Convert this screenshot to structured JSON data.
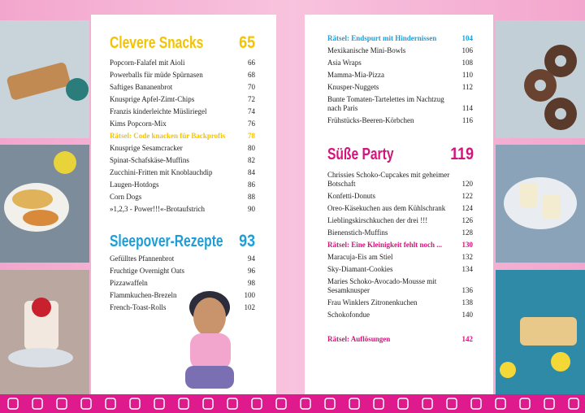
{
  "left_page": {
    "sections": [
      {
        "title": "Clevere Snacks",
        "page": 65,
        "color": "#f4c300",
        "entries": [
          {
            "text": "Popcorn-Falafel mit Aioli",
            "page": 66
          },
          {
            "text": "Powerballs für müde Spürnasen",
            "page": 68
          },
          {
            "text": "Saftiges Bananenbrot",
            "page": 70
          },
          {
            "text": "Knusprige Apfel-Zimt-Chips",
            "page": 72
          },
          {
            "text": "Franzis kinderleichte Müsliriegel",
            "page": 74
          },
          {
            "text": "Kims Popcorn-Mix",
            "page": 76
          },
          {
            "text": "Rätsel: Code knacken für Backprofis",
            "page": 78,
            "color": "#f4c300"
          },
          {
            "text": "Knusprige Sesamcracker",
            "page": 80
          },
          {
            "text": "Spinat-Schafskäse-Muffins",
            "page": 82
          },
          {
            "text": "Zucchini-Fritten mit Knoblauchdip",
            "page": 84
          },
          {
            "text": "Laugen-Hotdogs",
            "page": 86
          },
          {
            "text": "Corn Dogs",
            "page": 88
          },
          {
            "text": "»1,2,3 - Power!!!«-Brotaufstrich",
            "page": 90
          }
        ]
      },
      {
        "title": "Sleepover-Rezepte",
        "page": 93,
        "color": "#1c9ed8",
        "entries": [
          {
            "text": "Gefülltes Pfannenbrot",
            "page": 94
          },
          {
            "text": "Fruchtige Overnight Oats",
            "page": 96
          },
          {
            "text": "Pizzawaffeln",
            "page": 98
          },
          {
            "text": "Flammkuchen-Brezeln",
            "page": 100
          },
          {
            "text": "French-Toast-Rolls",
            "page": 102
          }
        ]
      }
    ]
  },
  "right_page": {
    "sections": [
      {
        "entries": [
          {
            "text": "Rätsel: Endspurt mit Hindernissen",
            "page": 104,
            "color": "#1c9ed8"
          },
          {
            "text": "Mexikanische Mini-Bowls",
            "page": 106
          },
          {
            "text": "Asia Wraps",
            "page": 108
          },
          {
            "text": "Mamma-Mia-Pizza",
            "page": 110
          },
          {
            "text": "Knusper-Nuggets",
            "page": 112
          },
          {
            "lines": [
              "Bunte Tomaten-Tartelettes im Nachtzug",
              "nach Paris"
            ],
            "page": 114
          },
          {
            "text": "Frühstücks-Beeren-Körbchen",
            "page": 116
          }
        ]
      },
      {
        "title": "Süße Party",
        "page": 119,
        "color": "#d5137c",
        "entries": [
          {
            "lines": [
              "Chrissies Schoko-Cupcakes mit geheimer",
              "Botschaft"
            ],
            "page": 120
          },
          {
            "text": "Konfetti-Donuts",
            "page": 122
          },
          {
            "text": "Oreo-Käsekuchen aus dem Kühlschrank",
            "page": 124
          },
          {
            "text": "Lieblingskirschkuchen der drei !!!",
            "page": 126
          },
          {
            "text": "Bienenstich-Muffins",
            "page": 128
          },
          {
            "text": "Rätsel: Eine Kleinigkeit fehlt noch ...",
            "page": 130,
            "color": "#d5137c"
          },
          {
            "text": "Maracuja-Eis am Stiel",
            "page": 132
          },
          {
            "text": "Sky-Diamant-Cookies",
            "page": 134
          },
          {
            "lines": [
              "Maries Schoko-Avocado-Mousse mit",
              "Sesamknusper"
            ],
            "page": 136
          },
          {
            "text": "Frau Winklers Zitronenkuchen",
            "page": 138
          },
          {
            "text": "Schokofondue",
            "page": 140
          }
        ]
      },
      {
        "entries": [
          {
            "text": "Rätsel: Auflösungen",
            "page": 142,
            "color": "#d5137c"
          }
        ]
      }
    ]
  }
}
